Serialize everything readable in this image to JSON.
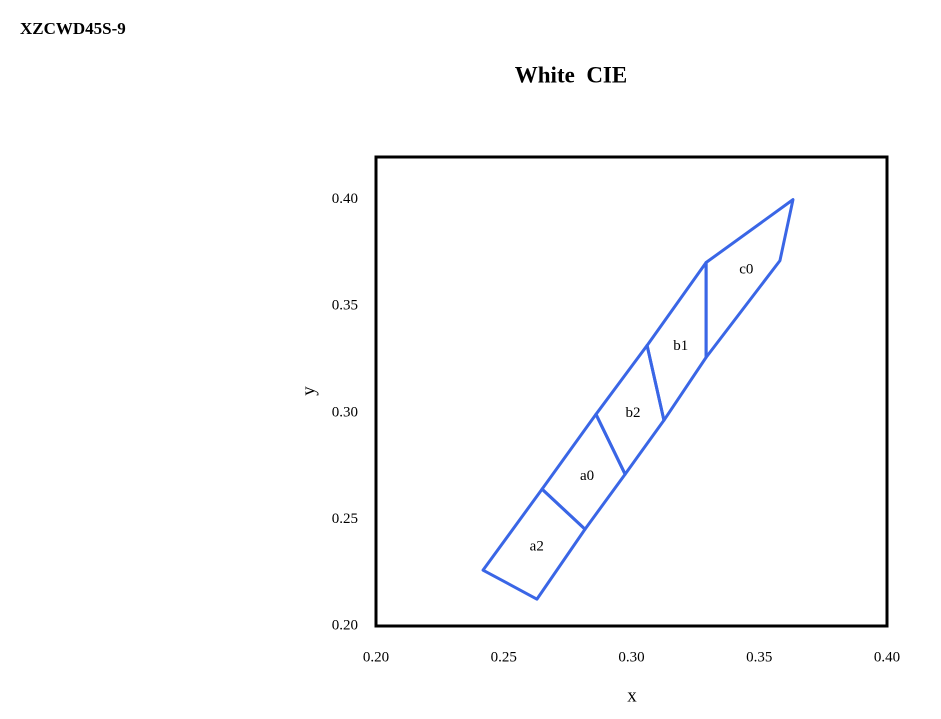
{
  "header": "XZCWD45S-9",
  "chart_data": {
    "type": "polygon",
    "title": "White  CIE",
    "xlabel": "x",
    "ylabel": "y",
    "xlim": [
      0.2,
      0.4
    ],
    "ylim": [
      0.2,
      0.42
    ],
    "xticks": [
      {
        "value": 0.2,
        "label": "0.20"
      },
      {
        "value": 0.25,
        "label": "0.25"
      },
      {
        "value": 0.3,
        "label": "0.30"
      },
      {
        "value": 0.35,
        "label": "0.35"
      },
      {
        "value": 0.4,
        "label": "0.40"
      }
    ],
    "yticks": [
      {
        "value": 0.2,
        "label": "0.20"
      },
      {
        "value": 0.25,
        "label": "0.25"
      },
      {
        "value": 0.3,
        "label": "0.30"
      },
      {
        "value": 0.35,
        "label": "0.35"
      },
      {
        "value": 0.4,
        "label": "0.40"
      }
    ],
    "series": [
      {
        "name": "a2",
        "color": "#3a66e6",
        "x": [
          0.2419,
          0.265,
          0.2818,
          0.263
        ],
        "y": [
          0.2262,
          0.2642,
          0.2454,
          0.2126
        ]
      },
      {
        "name": "a0",
        "color": "#3a66e6",
        "x": [
          0.265,
          0.2861,
          0.2975,
          0.2818
        ],
        "y": [
          0.2642,
          0.2993,
          0.2712,
          0.2454
        ]
      },
      {
        "name": "b2",
        "color": "#3a66e6",
        "x": [
          0.2861,
          0.3061,
          0.3127,
          0.2975
        ],
        "y": [
          0.2993,
          0.3316,
          0.2965,
          0.2712
        ]
      },
      {
        "name": "b1",
        "color": "#3a66e6",
        "x": [
          0.3061,
          0.3292,
          0.3292,
          0.3127
        ],
        "y": [
          0.3316,
          0.3705,
          0.326,
          0.2965
        ]
      },
      {
        "name": "c0",
        "color": "#3a66e6",
        "x": [
          0.3292,
          0.3632,
          0.3581,
          0.3292
        ],
        "y": [
          0.3705,
          0.4,
          0.3714,
          0.326
        ]
      }
    ]
  }
}
